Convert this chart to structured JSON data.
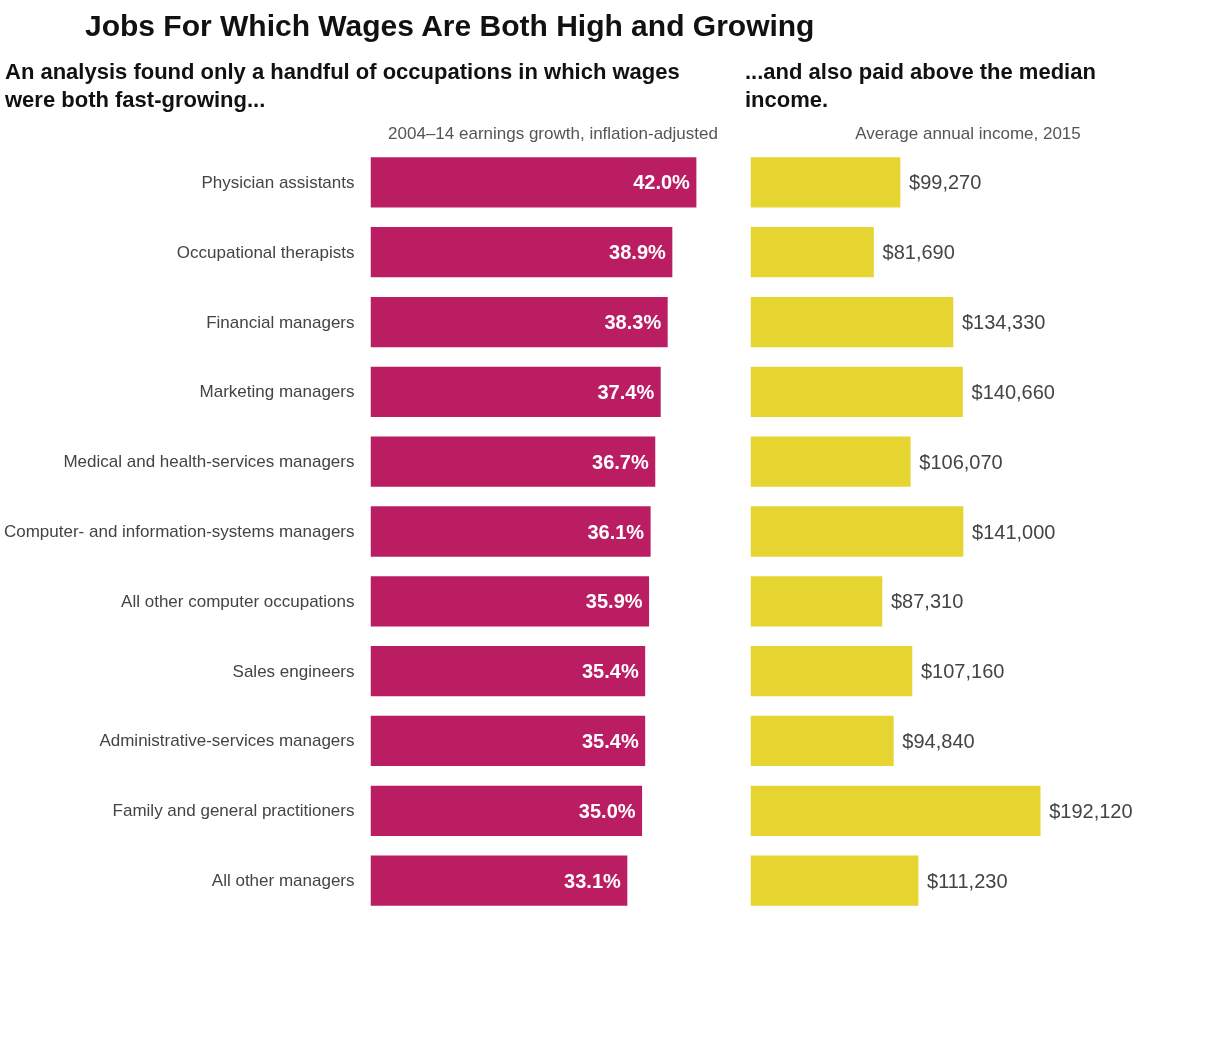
{
  "chart_data": [
    {
      "type": "bar",
      "orientation": "horizontal",
      "title": "Jobs For Which Wages Are Both High and Growing",
      "subtitle": "An analysis found only a handful of occupations in which wages were both fast-growing...",
      "xlabel": "2004–14 earnings growth, inflation-adjusted",
      "categories": [
        "Physician assistants",
        "Occupational therapists",
        "Financial managers",
        "Marketing managers",
        "Medical and health-services managers",
        "Computer- and information-systems managers",
        "All other computer occupations",
        "Sales engineers",
        "Administrative-services managers",
        "Family and general practitioners",
        "All other managers"
      ],
      "values": [
        42.0,
        38.9,
        38.3,
        37.4,
        36.7,
        36.1,
        35.9,
        35.4,
        35.4,
        35.0,
        33.1
      ],
      "value_labels": [
        "42.0%",
        "38.9%",
        "38.3%",
        "37.4%",
        "36.7%",
        "36.1%",
        "35.9%",
        "35.4%",
        "35.4%",
        "35.0%",
        "33.1%"
      ],
      "color": "#bb1d63",
      "tick_labels": "y"
    },
    {
      "type": "bar",
      "orientation": "horizontal",
      "subtitle": "...and also paid above the median income.",
      "xlabel": "Average annual income, 2015",
      "categories": [
        null,
        null,
        null,
        null,
        null,
        null,
        null,
        null,
        null,
        null,
        null
      ],
      "values": [
        99270,
        81690,
        134330,
        140660,
        106070,
        141000,
        87310,
        107160,
        94840,
        192120,
        111230
      ],
      "value_labels": [
        "$99,270",
        "$81,690",
        "$134,330",
        "$140,660",
        "$106,070",
        "$141,000",
        "$87,310",
        "$107,160",
        "$94,840",
        "$192,120",
        "$111,230"
      ],
      "color": "#e6d530"
    }
  ]
}
